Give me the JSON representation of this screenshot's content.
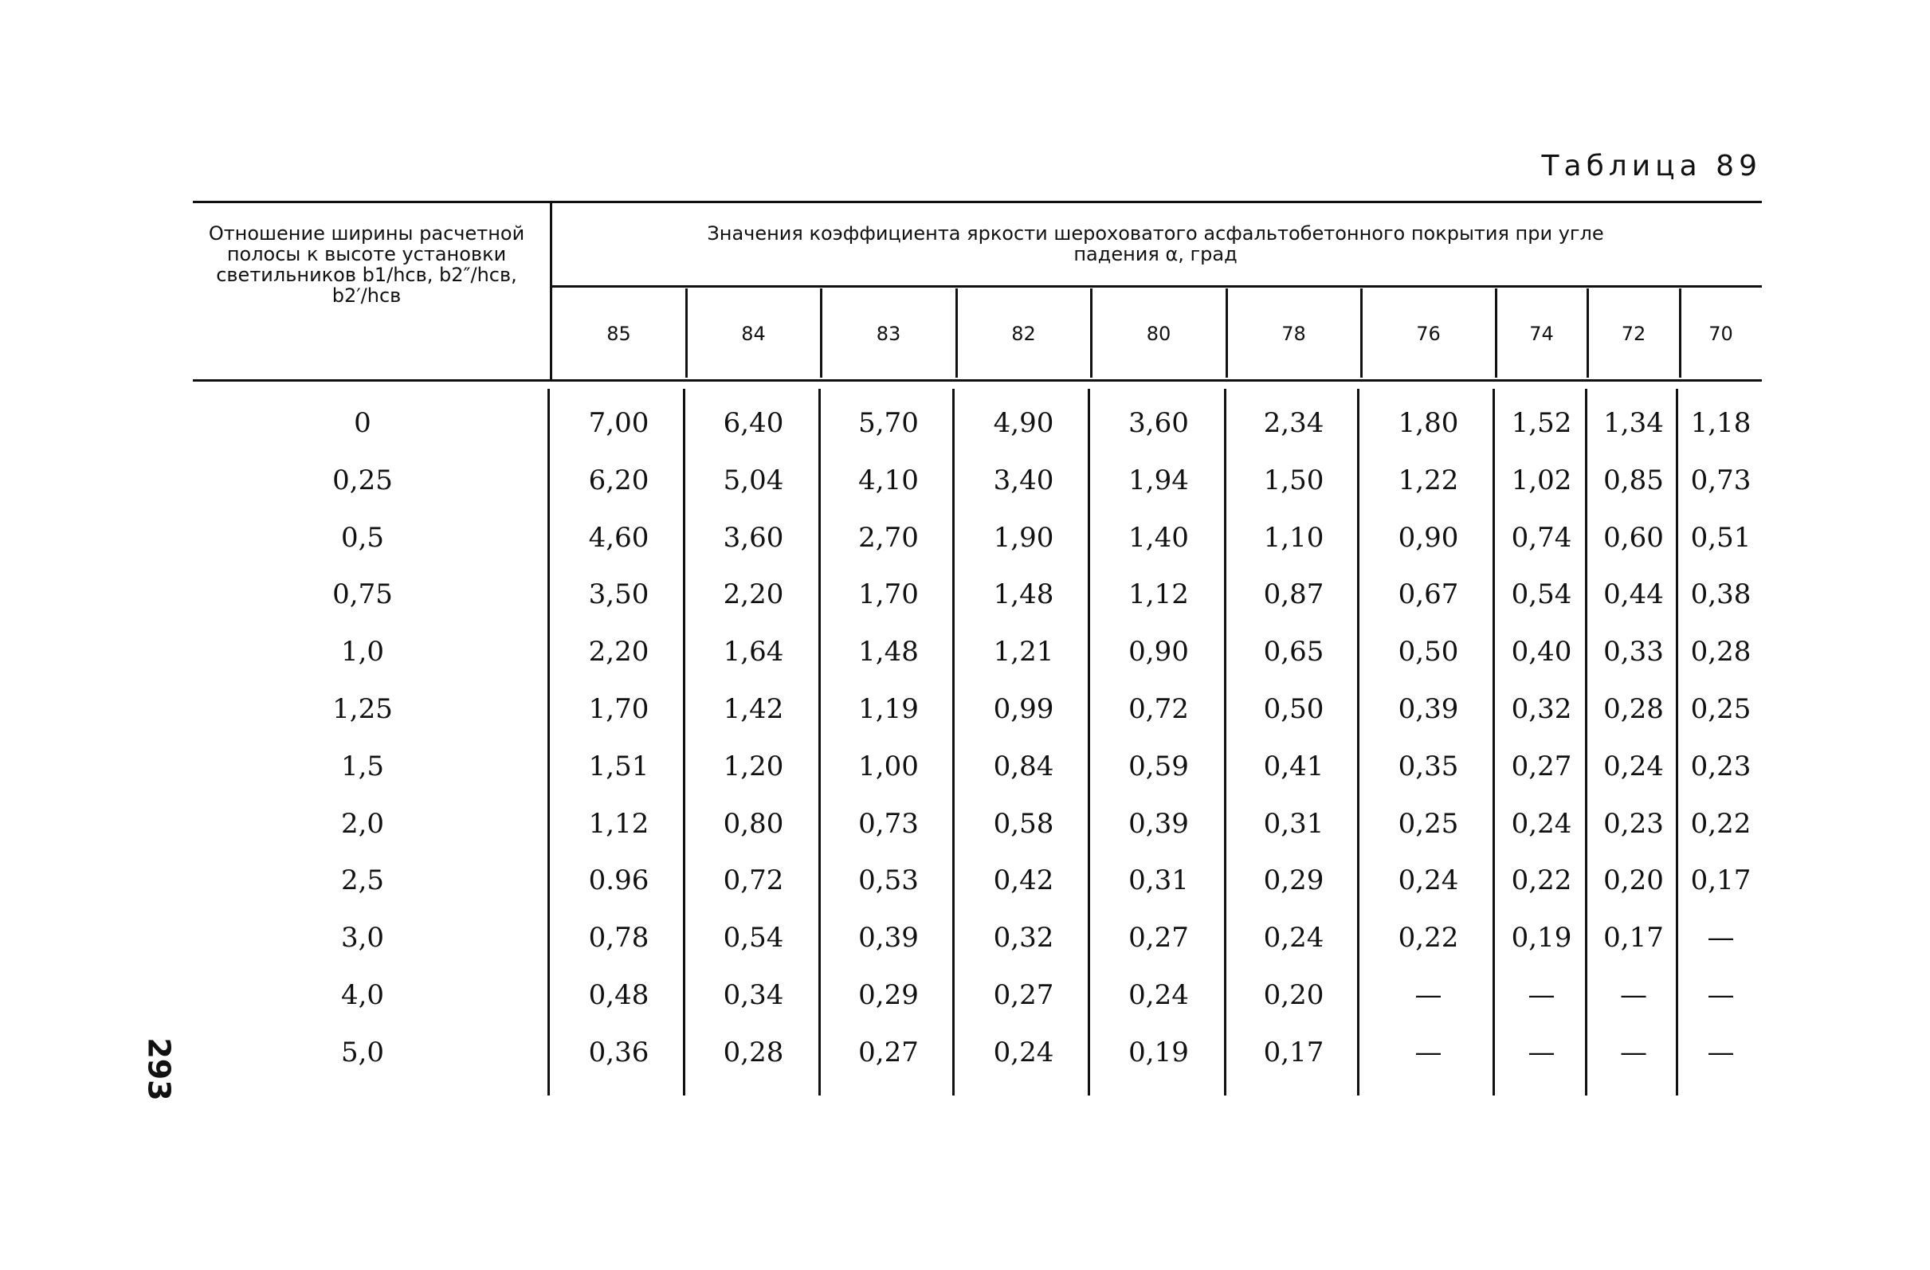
{
  "header": {
    "title": "Таблица 89"
  },
  "table": {
    "row_header": "Отношение ширины расчетной полосы к высоте установки светильников b1/hсв, b2″/hсв, b2′/hсв",
    "group_header": "Значения коэффициента яркости шероховатого асфальтобетонного покрытия при угле падения α, град",
    "columns": [
      "85",
      "84",
      "83",
      "82",
      "80",
      "78",
      "76",
      "74",
      "72",
      "70"
    ],
    "rows": [
      [
        "0",
        "7,00",
        "6,40",
        "5,70",
        "4,90",
        "3,60",
        "2,34",
        "1,80",
        "1,52",
        "1,34",
        "1,18"
      ],
      [
        "0,25",
        "6,20",
        "5,04",
        "4,10",
        "3,40",
        "1,94",
        "1,50",
        "1,22",
        "1,02",
        "0,85",
        "0,73"
      ],
      [
        "0,5",
        "4,60",
        "3,60",
        "2,70",
        "1,90",
        "1,40",
        "1,10",
        "0,90",
        "0,74",
        "0,60",
        "0,51"
      ],
      [
        "0,75",
        "3,50",
        "2,20",
        "1,70",
        "1,48",
        "1,12",
        "0,87",
        "0,67",
        "0,54",
        "0,44",
        "0,38"
      ],
      [
        "1,0",
        "2,20",
        "1,64",
        "1,48",
        "1,21",
        "0,90",
        "0,65",
        "0,50",
        "0,40",
        "0,33",
        "0,28"
      ],
      [
        "1,25",
        "1,70",
        "1,42",
        "1,19",
        "0,99",
        "0,72",
        "0,50",
        "0,39",
        "0,32",
        "0,28",
        "0,25"
      ],
      [
        "1,5",
        "1,51",
        "1,20",
        "1,00",
        "0,84",
        "0,59",
        "0,41",
        "0,35",
        "0,27",
        "0,24",
        "0,23"
      ],
      [
        "2,0",
        "1,12",
        "0,80",
        "0,73",
        "0,58",
        "0,39",
        "0,31",
        "0,25",
        "0,24",
        "0,23",
        "0,22"
      ],
      [
        "2,5",
        "0.96",
        "0,72",
        "0,53",
        "0,42",
        "0,31",
        "0,29",
        "0,24",
        "0,22",
        "0,20",
        "0,17"
      ],
      [
        "3,0",
        "0,78",
        "0,54",
        "0,39",
        "0,32",
        "0,27",
        "0,24",
        "0,22",
        "0,19",
        "0,17",
        "—"
      ],
      [
        "4,0",
        "0,48",
        "0,34",
        "0,29",
        "0,27",
        "0,24",
        "0,20",
        "—",
        "—",
        "—",
        "—"
      ],
      [
        "5,0",
        "0,36",
        "0,28",
        "0,27",
        "0,24",
        "0,19",
        "0,17",
        "—",
        "—",
        "—",
        "—"
      ]
    ]
  },
  "page_number": "293"
}
